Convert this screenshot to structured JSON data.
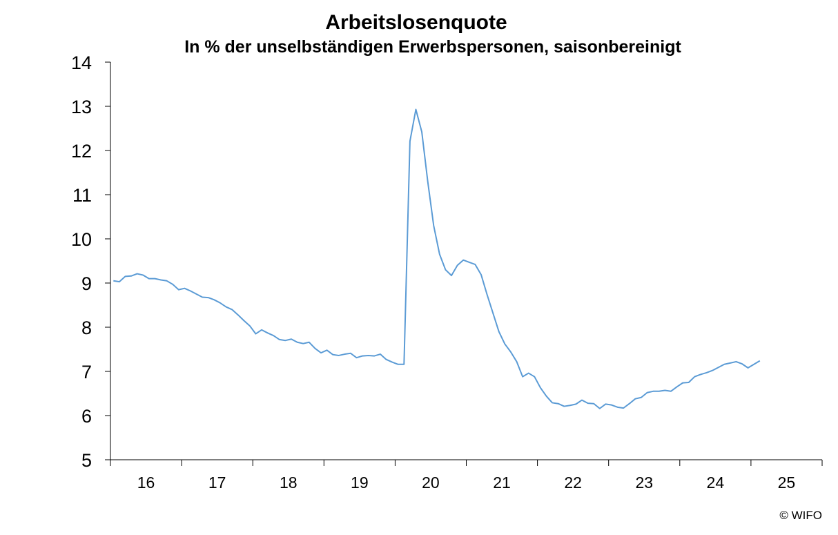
{
  "chart_data": {
    "type": "line",
    "title": "Arbeitslosenquote",
    "subtitle": "In % der unselbständigen Erwerbspersonen, saisonbereinigt",
    "xlabel": "",
    "ylabel": "",
    "ylim": [
      5,
      14
    ],
    "yticks": [
      "5",
      "6",
      "7",
      "8",
      "9",
      "10",
      "11",
      "12",
      "13",
      "14"
    ],
    "xticks": [
      "16",
      "17",
      "18",
      "19",
      "20",
      "21",
      "22",
      "23",
      "24",
      "25"
    ],
    "x_start": "2016-01",
    "x_end": "2025-12",
    "grid": false,
    "legend": "none",
    "series": [
      {
        "color": "#5B9BD5",
        "values": [
          9.05,
          9.03,
          9.15,
          9.16,
          9.21,
          9.18,
          9.1,
          9.1,
          9.07,
          9.05,
          8.97,
          8.85,
          8.88,
          8.82,
          8.75,
          8.68,
          8.67,
          8.62,
          8.55,
          8.46,
          8.4,
          8.28,
          8.15,
          8.03,
          7.85,
          7.94,
          7.87,
          7.81,
          7.72,
          7.7,
          7.73,
          7.66,
          7.63,
          7.66,
          7.52,
          7.42,
          7.48,
          7.38,
          7.36,
          7.39,
          7.41,
          7.31,
          7.35,
          7.36,
          7.35,
          7.39,
          7.27,
          7.21,
          7.16,
          7.16,
          12.21,
          12.93,
          12.42,
          11.3,
          10.3,
          9.65,
          9.3,
          9.17,
          9.4,
          9.52,
          9.47,
          9.42,
          9.19,
          8.74,
          8.32,
          7.9,
          7.62,
          7.44,
          7.22,
          6.88,
          6.96,
          6.88,
          6.63,
          6.44,
          6.29,
          6.27,
          6.21,
          6.23,
          6.26,
          6.35,
          6.28,
          6.27,
          6.16,
          6.26,
          6.24,
          6.19,
          6.17,
          6.27,
          6.38,
          6.41,
          6.52,
          6.55,
          6.55,
          6.57,
          6.55,
          6.65,
          6.74,
          6.75,
          6.88,
          6.93,
          6.97,
          7.02,
          7.09,
          7.16,
          7.19,
          7.22,
          7.17,
          7.08,
          7.16,
          7.24
        ]
      }
    ]
  },
  "credit": "© WIFO"
}
